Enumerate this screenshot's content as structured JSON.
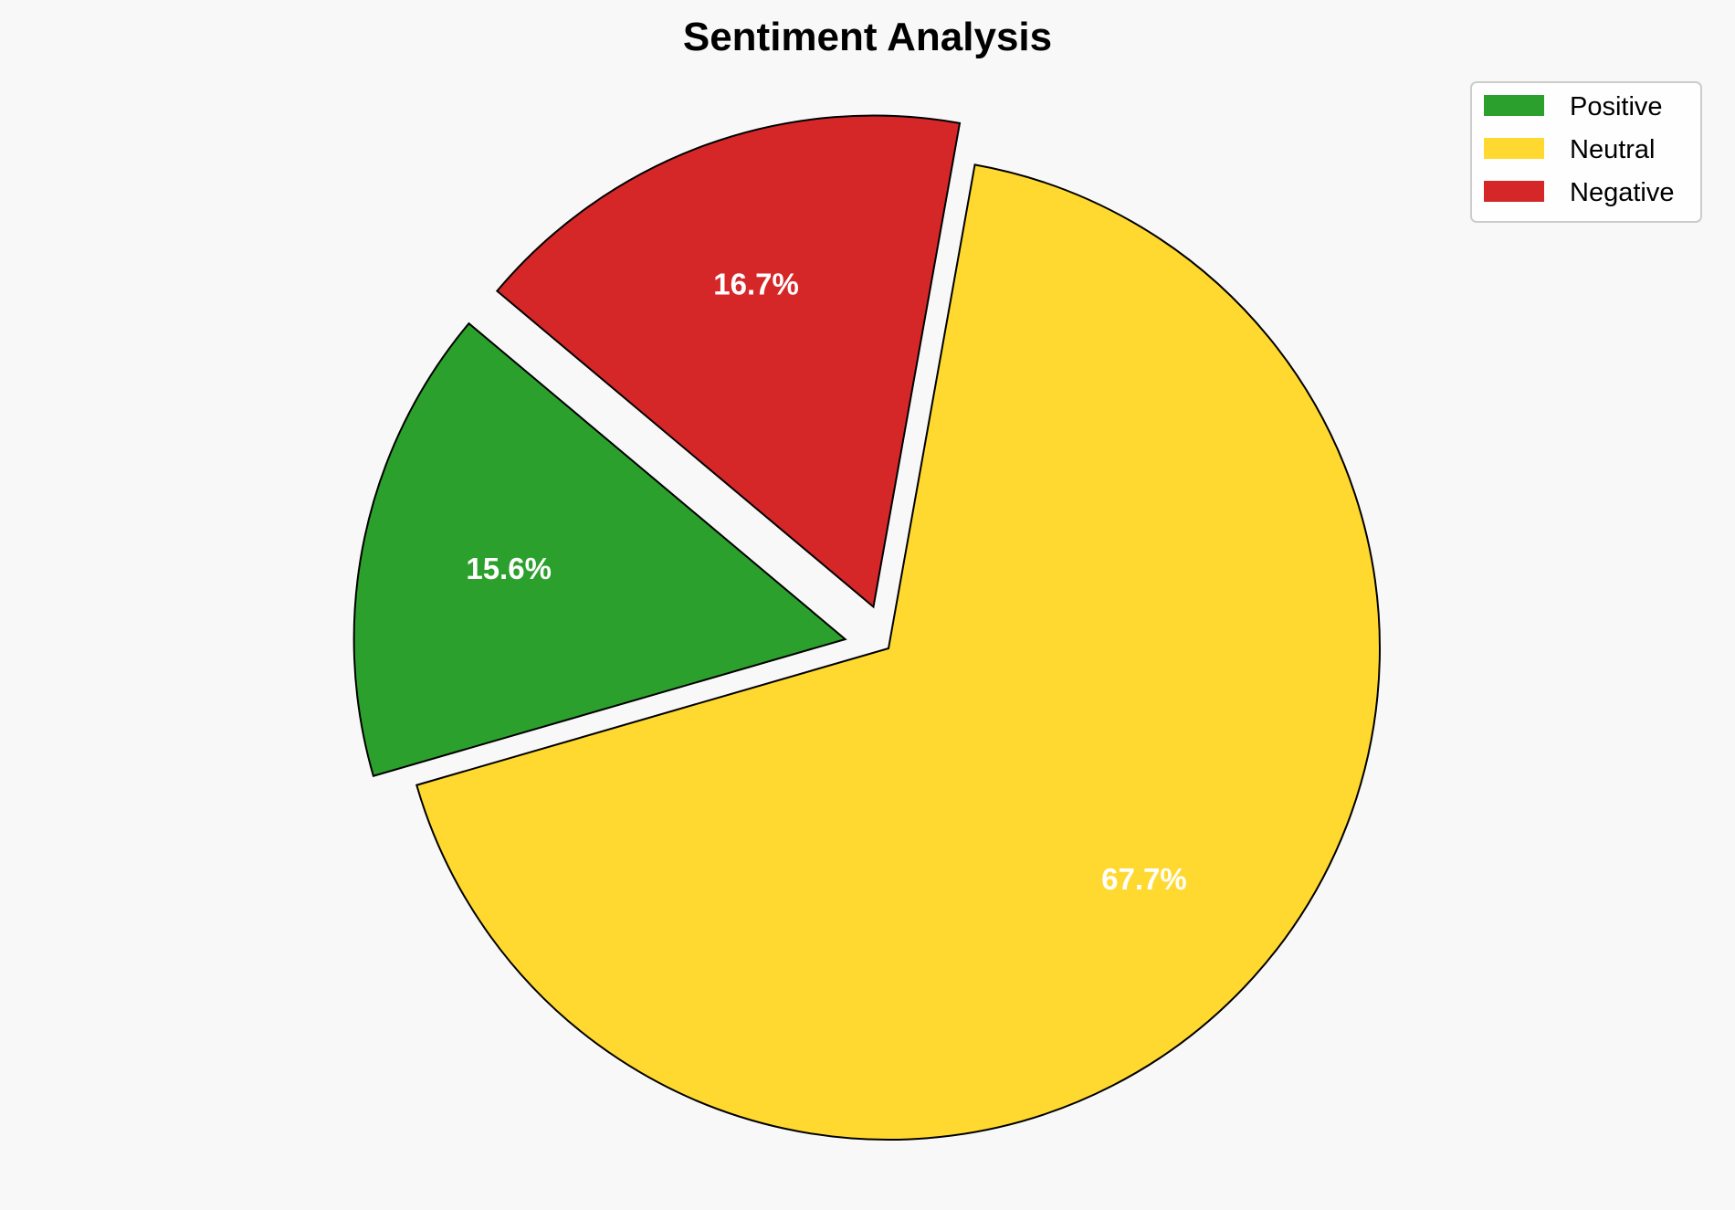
{
  "chart_data": {
    "type": "pie",
    "title": "Sentiment Analysis",
    "categories": [
      "Positive",
      "Neutral",
      "Negative"
    ],
    "values": [
      15.6,
      67.7,
      16.7
    ],
    "labels": [
      "15.6%",
      "67.7%",
      "16.7%"
    ],
    "colors": [
      "#2ca02c",
      "#ffd92f",
      "#d62728"
    ],
    "explode": [
      0.09,
      0,
      0.09
    ],
    "start_angle": 140,
    "direction": "counterclockwise",
    "legend_position": "top-right",
    "edge_color": "#000000"
  }
}
